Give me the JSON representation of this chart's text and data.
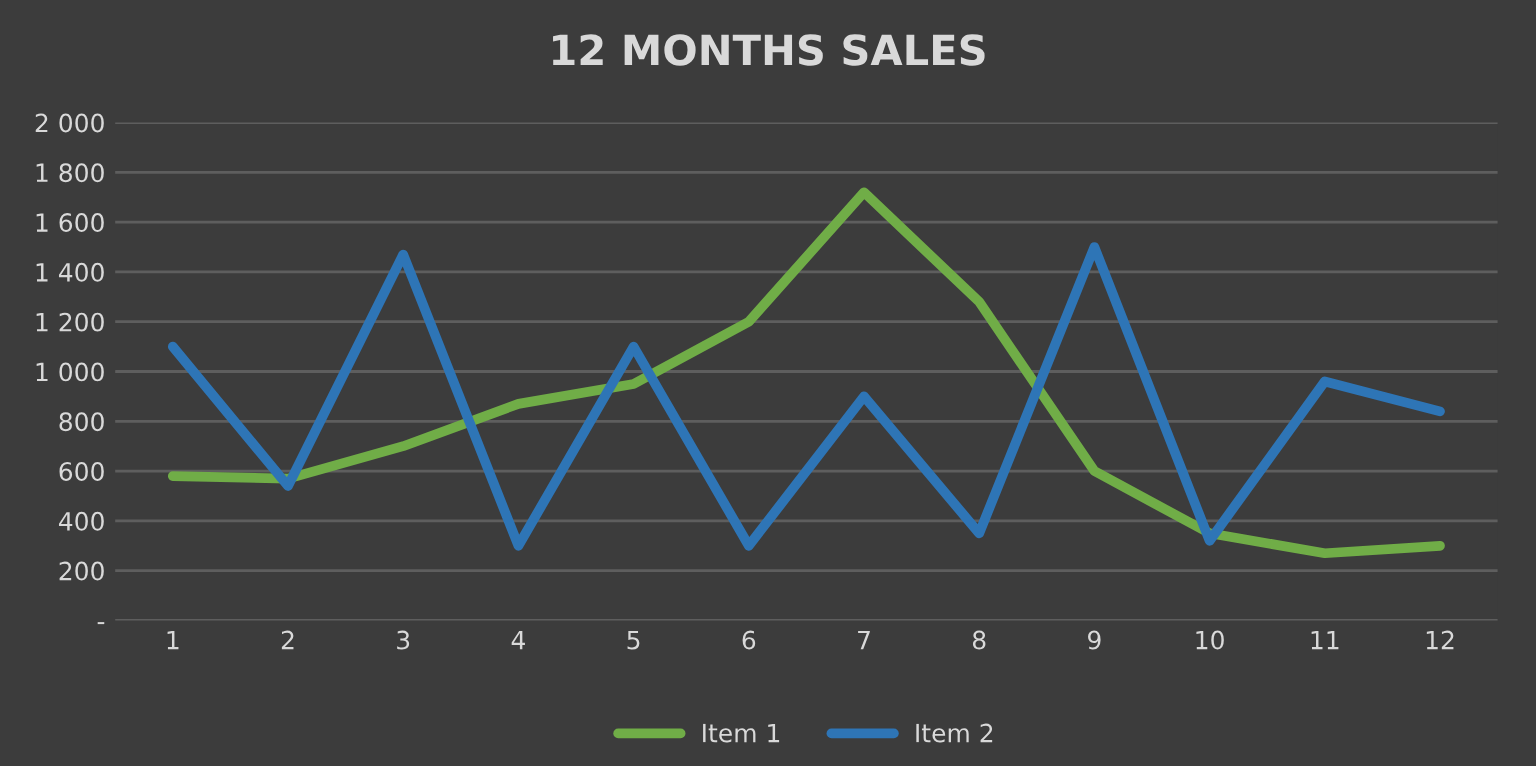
{
  "chart_data": {
    "type": "line",
    "title": "12 MONTHS SALES",
    "categories": [
      "1",
      "2",
      "3",
      "4",
      "5",
      "6",
      "7",
      "8",
      "9",
      "10",
      "11",
      "12"
    ],
    "series": [
      {
        "name": "Item 1",
        "color": "#70ad47",
        "values": [
          580,
          570,
          700,
          870,
          950,
          1200,
          1720,
          1280,
          600,
          350,
          270,
          300
        ]
      },
      {
        "name": "Item 2",
        "color": "#2e75b6",
        "values": [
          1100,
          540,
          1470,
          300,
          1100,
          300,
          900,
          350,
          1500,
          320,
          960,
          840
        ]
      }
    ],
    "ylim": [
      0,
      2000
    ],
    "yticks": [
      {
        "value": 0,
        "label": "-"
      },
      {
        "value": 200,
        "label": "200"
      },
      {
        "value": 400,
        "label": "400"
      },
      {
        "value": 600,
        "label": "600"
      },
      {
        "value": 800,
        "label": "800"
      },
      {
        "value": 1000,
        "label": "1 000"
      },
      {
        "value": 1200,
        "label": "1 200"
      },
      {
        "value": 1400,
        "label": "1 400"
      },
      {
        "value": 1600,
        "label": "1 600"
      },
      {
        "value": 1800,
        "label": "1 800"
      },
      {
        "value": 2000,
        "label": "2 000"
      }
    ],
    "grid": "y",
    "legend": "bottom",
    "marker": "none",
    "line_style": "solid"
  }
}
